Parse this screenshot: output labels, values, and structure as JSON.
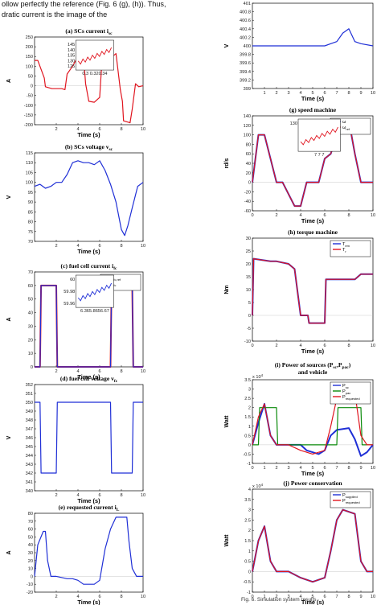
{
  "intro": {
    "line1": "ollow perfectly the reference (Fig. 6 (g), (h)). Thus,",
    "line2": "dratic current is the image of the"
  },
  "figure_caption": "Fig. 6. Simulation system results",
  "colors": {
    "red": "#e0151f",
    "blue": "#1f2fd6",
    "green": "#0a8a0a",
    "magenta": "#c0166e"
  },
  "chart_data": [
    {
      "id": "a",
      "type": "line",
      "title": "(a) SCs current i",
      "title_sub": "sc",
      "xlabel": "Time (s)",
      "ylabel": "A",
      "xlim": [
        0,
        10
      ],
      "ylim": [
        -200,
        250
      ],
      "xticks": [
        2,
        4,
        6,
        8,
        10
      ],
      "yticks": [
        250,
        200,
        150,
        100,
        50,
        0,
        -50,
        -100,
        -150,
        -200
      ],
      "inset_ticks": [
        "145",
        "140",
        "135",
        "130",
        "125"
      ],
      "inset_xlabel": "0.3 0.320.34",
      "series": [
        {
          "color": "red",
          "x": [
            0,
            0.3,
            0.9,
            1.0,
            1.6,
            2.5,
            2.8,
            3.0,
            3.5,
            4.0,
            4.5,
            4.7,
            5.0,
            5.5,
            6.0,
            6.2,
            6.5,
            7.0,
            7.5,
            7.9,
            8.1,
            8.2,
            8.8,
            9.0,
            9.3,
            9.6,
            10
          ],
          "y": [
            130,
            130,
            40,
            -5,
            -15,
            -15,
            -20,
            60,
            100,
            150,
            160,
            10,
            -80,
            -85,
            -60,
            120,
            90,
            140,
            165,
            -20,
            -80,
            -180,
            -190,
            -120,
            10,
            -5,
            0
          ]
        }
      ]
    },
    {
      "id": "b",
      "type": "line",
      "title": "(b) SCs voltage v",
      "title_sub": "sc",
      "xlabel": "Time (s)",
      "ylabel": "V",
      "xlim": [
        0,
        10
      ],
      "ylim": [
        70,
        115
      ],
      "xticks": [
        2,
        4,
        6,
        8,
        10
      ],
      "yticks": [
        115,
        110,
        105,
        100,
        95,
        90,
        85,
        80,
        75,
        70
      ],
      "series": [
        {
          "color": "blue",
          "x": [
            0,
            0.5,
            1.0,
            1.5,
            2.0,
            2.5,
            3.0,
            3.5,
            4.0,
            4.5,
            5.0,
            5.5,
            6.0,
            6.5,
            7.0,
            7.5,
            8.0,
            8.3,
            8.6,
            9.0,
            9.5,
            10
          ],
          "y": [
            98,
            99,
            97,
            98,
            100,
            100,
            104,
            110,
            111,
            110,
            110,
            109,
            111,
            106,
            99,
            90,
            76,
            73,
            78,
            87,
            98,
            100
          ]
        }
      ]
    },
    {
      "id": "c",
      "type": "line",
      "title": "(c) fuel cell current i",
      "title_sub": "fc",
      "xlabel": "Time (s)",
      "ylabel": "A",
      "xlim": [
        0,
        10
      ],
      "ylim": [
        0,
        70
      ],
      "xticks": [
        2,
        4,
        6,
        8,
        10
      ],
      "yticks": [
        0,
        10,
        20,
        30,
        40,
        50,
        60,
        70
      ],
      "legend": [
        "i",
        "i"
      ],
      "legend_sub": [
        "fc,ref",
        "fc"
      ],
      "inset_ticks": [
        "60",
        "59.98",
        "59.96"
      ],
      "inset_xlabel": "6.365.8656.67",
      "series": [
        {
          "name": "i fc,ref",
          "color": "red",
          "x": [
            0,
            0.5,
            0.6,
            2.0,
            2.1,
            6.3,
            6.4,
            7.0,
            7.1,
            9.0,
            9.1,
            10
          ],
          "y": [
            0,
            0,
            60,
            60,
            0,
            0,
            0,
            0,
            60,
            60,
            0,
            0
          ]
        },
        {
          "name": "i fc",
          "color": "blue",
          "x": [
            0,
            0.5,
            0.6,
            2.0,
            2.1,
            6.3,
            6.4,
            7.0,
            7.1,
            9.0,
            9.1,
            10
          ],
          "y": [
            0,
            0,
            60,
            60,
            0,
            0,
            0,
            0,
            60,
            60,
            0,
            0
          ]
        }
      ]
    },
    {
      "id": "d",
      "type": "line",
      "title": "(d) fuel cell voltage v",
      "title_sub": "fc",
      "xlabel": "Time (s)",
      "ylabel": "V",
      "xlim": [
        0,
        10
      ],
      "ylim": [
        340,
        352
      ],
      "xticks": [
        2,
        4,
        6,
        8,
        10
      ],
      "yticks": [
        352,
        351,
        350,
        349,
        348,
        347,
        346,
        345,
        344,
        343,
        342,
        341,
        340
      ],
      "series": [
        {
          "color": "blue",
          "x": [
            0,
            0.5,
            0.6,
            2.0,
            2.1,
            6.3,
            6.4,
            7.0,
            7.1,
            9.0,
            9.1,
            10
          ],
          "y": [
            350,
            350,
            342,
            342,
            350,
            350,
            350,
            350,
            342,
            342,
            350,
            350
          ]
        }
      ]
    },
    {
      "id": "e",
      "type": "line",
      "title": "(e) requested current i",
      "title_sub": "L",
      "xlabel": "Time (s)",
      "ylabel": "A",
      "xlim": [
        0,
        10
      ],
      "ylim": [
        -20,
        80
      ],
      "xticks": [
        2,
        4,
        6,
        8,
        10
      ],
      "yticks": [
        80,
        70,
        60,
        50,
        40,
        30,
        20,
        10,
        0,
        -10,
        -20
      ],
      "series": [
        {
          "color": "blue",
          "x": [
            0,
            0.3,
            0.8,
            1.0,
            1.2,
            1.5,
            2.0,
            3.0,
            3.5,
            4.0,
            4.5,
            5.5,
            6.0,
            6.5,
            7.0,
            7.5,
            8.5,
            8.7,
            9.0,
            9.4,
            10
          ],
          "y": [
            0,
            40,
            57,
            57,
            20,
            0,
            0,
            -3,
            -3,
            -5,
            -10,
            -10,
            -5,
            35,
            60,
            75,
            75,
            45,
            10,
            0,
            0
          ]
        }
      ]
    },
    {
      "id": "f",
      "type": "line",
      "title": "",
      "xlabel": "Time (s)",
      "ylabel": "V",
      "xlim": [
        0,
        10
      ],
      "ylim": [
        399,
        401
      ],
      "xticks": [
        1,
        2,
        3,
        4,
        5,
        6,
        7,
        8,
        9,
        10
      ],
      "yticks": [
        "401",
        "400.8",
        "400.6",
        "400.4",
        "400.2",
        "400",
        "399.8",
        "399.6",
        "399.4",
        "399.2",
        "399"
      ],
      "series": [
        {
          "color": "blue",
          "x": [
            0,
            1,
            2,
            3,
            4,
            5,
            6,
            6.5,
            7,
            7.5,
            8,
            8.5,
            9,
            10
          ],
          "y": [
            400,
            400,
            400,
            400,
            400,
            400,
            400,
            400.05,
            400.1,
            400.3,
            400.4,
            400.1,
            400.05,
            400
          ]
        }
      ]
    },
    {
      "id": "g",
      "type": "line",
      "title": "(g) speed machine",
      "xlabel": "Time (s)",
      "ylabel": "rd/s",
      "xlim": [
        0,
        10
      ],
      "ylim": [
        -60,
        140
      ],
      "xticks": [
        0,
        2,
        4,
        6,
        8,
        10
      ],
      "yticks": [
        140,
        120,
        100,
        80,
        60,
        40,
        20,
        0,
        -20,
        -40,
        -60
      ],
      "legend": [
        "ω",
        "ω"
      ],
      "legend_sub": [
        "",
        "ref"
      ],
      "inset_ticks": [
        "130"
      ],
      "inset_xlabel": "7 7 7",
      "series": [
        {
          "name": "ω",
          "color": "blue",
          "x": [
            0,
            0.5,
            1.0,
            1.5,
            2.0,
            2.5,
            3.5,
            4.0,
            4.5,
            5.5,
            6.0,
            6.5,
            7.0,
            7.5,
            8.0,
            8.5,
            9.0,
            9.5,
            10
          ],
          "y": [
            0,
            100,
            100,
            50,
            0,
            0,
            -50,
            -50,
            0,
            0,
            50,
            60,
            100,
            130,
            130,
            60,
            0,
            0,
            0
          ]
        },
        {
          "name": "ω ref",
          "color": "red",
          "x": [
            0,
            0.5,
            1.0,
            1.5,
            2.0,
            2.5,
            3.5,
            4.0,
            4.5,
            5.5,
            6.0,
            6.5,
            7.0,
            7.5,
            8.0,
            8.5,
            9.0,
            9.5,
            10
          ],
          "y": [
            0,
            100,
            100,
            50,
            0,
            0,
            -50,
            -50,
            0,
            0,
            50,
            60,
            100,
            130,
            130,
            60,
            0,
            0,
            0
          ]
        }
      ]
    },
    {
      "id": "h",
      "type": "line",
      "title": "(h) torque machine",
      "xlabel": "Time (s)",
      "ylabel": "Nm",
      "xlim": [
        0,
        10
      ],
      "ylim": [
        -10,
        30
      ],
      "xticks": [
        0,
        2,
        4,
        6,
        8,
        10
      ],
      "yticks": [
        30,
        25,
        20,
        15,
        10,
        5,
        0,
        -5,
        -10
      ],
      "legend": [
        "T",
        "T"
      ],
      "legend_sub": [
        "em",
        "r"
      ],
      "series": [
        {
          "name": "T em",
          "color": "blue",
          "x": [
            0,
            0.1,
            1.5,
            2.0,
            3.0,
            3.5,
            4.0,
            4.6,
            4.7,
            6.0,
            6.1,
            7.0,
            8.5,
            9.0,
            9.5,
            10
          ],
          "y": [
            0,
            22,
            21,
            21,
            20,
            18,
            0,
            0,
            -3,
            -3,
            14,
            14,
            14,
            16,
            16,
            16
          ]
        },
        {
          "name": "T r",
          "color": "red",
          "x": [
            0,
            0.1,
            1.5,
            2.0,
            3.0,
            3.5,
            4.0,
            4.6,
            4.7,
            6.0,
            6.1,
            7.0,
            8.5,
            9.0,
            9.5,
            10
          ],
          "y": [
            0,
            22,
            21,
            21,
            20,
            18,
            0,
            0,
            -3,
            -3,
            14,
            14,
            14,
            16,
            16,
            16
          ]
        }
      ]
    },
    {
      "id": "i",
      "type": "line",
      "title": "(i) Power of sources (P",
      "title_sub1": "sc",
      "title_mid": ",P",
      "title_sub2": "pac",
      "title_end": ")",
      "title_line2": "and vehicle",
      "xlabel": "Time (s)",
      "ylabel": "Watt",
      "exponent": "x 10",
      "exponent_pow": "4",
      "xlim": [
        0,
        10
      ],
      "ylim": [
        -1,
        3.5
      ],
      "xticks": [
        0,
        1,
        2,
        3,
        4,
        5,
        6,
        7,
        8,
        9,
        10
      ],
      "yticks": [
        "3.5",
        "3",
        "2.5",
        "2",
        "1.5",
        "1",
        "0.5",
        "0",
        "-0.5",
        "-1"
      ],
      "legend": [
        "P",
        "P",
        "P"
      ],
      "legend_sub": [
        "sc",
        "pac",
        "requested"
      ],
      "series": [
        {
          "name": "P sc",
          "color": "blue",
          "x": [
            0,
            0.5,
            1.0,
            1.5,
            2.0,
            2.5,
            3.0,
            4.0,
            4.5,
            5.5,
            6.0,
            6.5,
            7.0,
            8.0,
            8.5,
            9.0,
            9.5,
            10
          ],
          "y": [
            0,
            1.2,
            2.2,
            0.5,
            0,
            0,
            0,
            0,
            -0.3,
            -0.5,
            -0.3,
            0.5,
            0.8,
            0.9,
            0.3,
            -0.6,
            -0.4,
            0
          ]
        },
        {
          "name": "P pac",
          "color": "green",
          "x": [
            0,
            0.5,
            0.6,
            2.0,
            2.1,
            6.3,
            6.4,
            7.0,
            7.1,
            9.0,
            9.1,
            10
          ],
          "y": [
            0,
            0,
            2.0,
            2.0,
            0,
            0,
            0,
            0,
            2.0,
            2.0,
            0,
            0
          ]
        },
        {
          "name": "P requested",
          "color": "red",
          "x": [
            0,
            0.5,
            1.0,
            1.5,
            2.0,
            3.0,
            4.0,
            5.0,
            6.0,
            6.5,
            7.0,
            7.5,
            8.5,
            9.0,
            9.5,
            10
          ],
          "y": [
            0,
            1.5,
            2.2,
            0.5,
            0,
            0,
            -0.3,
            -0.5,
            -0.3,
            1.0,
            2.5,
            3.0,
            2.8,
            0.5,
            0,
            0
          ]
        }
      ]
    },
    {
      "id": "j",
      "type": "line",
      "title": "(j) Power conservation",
      "xlabel": "Time (s)",
      "ylabel": "Watt",
      "exponent": "x 10",
      "exponent_pow": "4",
      "xlim": [
        0,
        10
      ],
      "ylim": [
        -1,
        4
      ],
      "xticks": [
        0,
        1,
        2,
        3,
        4,
        5,
        6,
        7,
        8,
        9,
        10
      ],
      "yticks": [
        "4",
        "3.5",
        "3",
        "2.5",
        "2",
        "1.5",
        "1",
        "0.5",
        "0",
        "-0.5",
        "-1"
      ],
      "legend": [
        "P",
        "P"
      ],
      "legend_sub": [
        "supplied",
        "requested"
      ],
      "series": [
        {
          "name": "P supplied",
          "color": "blue",
          "x": [
            0,
            0.5,
            1.0,
            1.5,
            2.0,
            3.0,
            4.0,
            5.0,
            6.0,
            6.5,
            7.0,
            7.5,
            8.5,
            9.0,
            9.5,
            10
          ],
          "y": [
            0,
            1.5,
            2.2,
            0.5,
            0,
            0,
            -0.3,
            -0.5,
            -0.3,
            1.0,
            2.5,
            3.0,
            2.8,
            0.5,
            0,
            0
          ]
        },
        {
          "name": "P requested",
          "color": "red",
          "x": [
            0,
            0.5,
            1.0,
            1.5,
            2.0,
            3.0,
            4.0,
            5.0,
            6.0,
            6.5,
            7.0,
            7.5,
            8.5,
            9.0,
            9.5,
            10
          ],
          "y": [
            0,
            1.5,
            2.2,
            0.5,
            0,
            0,
            -0.3,
            -0.5,
            -0.3,
            1.0,
            2.5,
            3.0,
            2.8,
            0.5,
            0,
            0
          ]
        }
      ]
    }
  ]
}
